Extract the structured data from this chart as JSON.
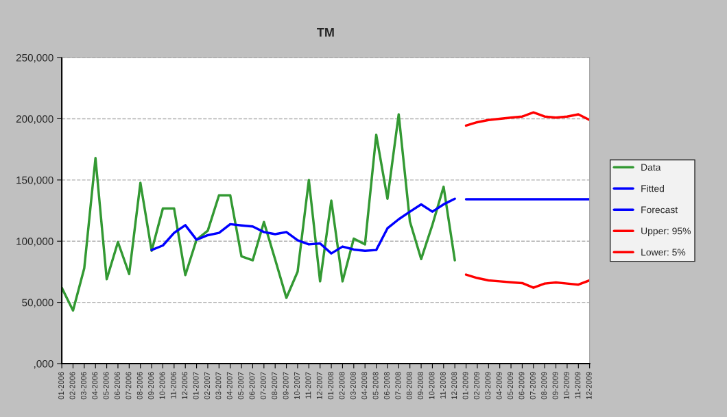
{
  "chart_data": {
    "type": "line",
    "title": "TM",
    "categories": [
      "01-2006",
      "02-2006",
      "03-2006",
      "04-2006",
      "05-2006",
      "06-2006",
      "07-2006",
      "08-2006",
      "09-2006",
      "10-2006",
      "11-2006",
      "12-2006",
      "01-2007",
      "02-2007",
      "03-2007",
      "04-2007",
      "05-2007",
      "06-2007",
      "07-2007",
      "08-2007",
      "09-2007",
      "10-2007",
      "11-2007",
      "12-2007",
      "01-2008",
      "02-2008",
      "03-2008",
      "04-2008",
      "05-2008",
      "06-2008",
      "07-2008",
      "08-2008",
      "09-2008",
      "10-2008",
      "11-2008",
      "12-2008",
      "01-2009",
      "02-2009",
      "03-2009",
      "04-2009",
      "05-2009",
      "06-2009",
      "07-2009",
      "08-2009",
      "09-2009",
      "10-2009",
      "11-2009",
      "12-2009"
    ],
    "series": [
      {
        "name": "Data",
        "color": "#339933",
        "values": [
          62000,
          43400,
          77900,
          167900,
          68900,
          99300,
          73200,
          147700,
          92200,
          126700,
          126700,
          72300,
          101200,
          108600,
          137500,
          137500,
          87600,
          84400,
          115700,
          85000,
          53700,
          75100,
          150000,
          67200,
          133200,
          67200,
          102100,
          97400,
          186900,
          134700,
          203600,
          116100,
          85400,
          113300,
          144400,
          84400,
          null,
          null,
          null,
          null,
          null,
          null,
          null,
          null,
          null,
          null,
          null,
          null
        ]
      },
      {
        "name": "Fitted",
        "color": "#0000ff",
        "values": [
          null,
          null,
          null,
          null,
          null,
          null,
          null,
          null,
          92800,
          96500,
          106800,
          113100,
          101200,
          104900,
          106800,
          113900,
          112900,
          112000,
          107500,
          105700,
          107500,
          100800,
          97400,
          98200,
          90000,
          95600,
          93200,
          92200,
          92800,
          110500,
          117900,
          124100,
          130100,
          124100,
          130100,
          134700,
          null,
          null,
          null,
          null,
          null,
          null,
          null,
          null,
          null,
          null,
          null,
          null
        ]
      },
      {
        "name": "Forecast",
        "color": "#0000ff",
        "values": [
          null,
          null,
          null,
          null,
          null,
          null,
          null,
          null,
          null,
          null,
          null,
          null,
          null,
          null,
          null,
          null,
          null,
          null,
          null,
          null,
          null,
          null,
          null,
          null,
          null,
          null,
          null,
          null,
          null,
          null,
          null,
          null,
          null,
          null,
          null,
          null,
          134200,
          134200,
          134200,
          134200,
          134200,
          134200,
          134200,
          134200,
          134200,
          134200,
          134200,
          134200
        ]
      },
      {
        "name": "Upper: 95%",
        "color": "#ff0000",
        "values": [
          null,
          null,
          null,
          null,
          null,
          null,
          null,
          null,
          null,
          null,
          null,
          null,
          null,
          null,
          null,
          null,
          null,
          null,
          null,
          null,
          null,
          null,
          null,
          null,
          null,
          null,
          null,
          null,
          null,
          null,
          null,
          null,
          null,
          null,
          null,
          null,
          194400,
          197200,
          199000,
          200000,
          200900,
          201800,
          205200,
          201800,
          200900,
          201800,
          203600,
          199000
        ]
      },
      {
        "name": "Lower: 5%",
        "color": "#ff0000",
        "values": [
          null,
          null,
          null,
          null,
          null,
          null,
          null,
          null,
          null,
          null,
          null,
          null,
          null,
          null,
          null,
          null,
          null,
          null,
          null,
          null,
          null,
          null,
          null,
          null,
          null,
          null,
          null,
          null,
          null,
          null,
          null,
          null,
          null,
          null,
          null,
          null,
          72700,
          69900,
          68000,
          67200,
          66500,
          65800,
          62000,
          65400,
          66300,
          65400,
          64500,
          68000
        ]
      }
    ],
    "ylim": [
      0,
      250000
    ],
    "yticks": [
      {
        "value": 0,
        "label": ",000"
      },
      {
        "value": 50000,
        "label": "50,000"
      },
      {
        "value": 100000,
        "label": "100,000"
      },
      {
        "value": 150000,
        "label": "150,000"
      },
      {
        "value": 200000,
        "label": "200,000"
      },
      {
        "value": 250000,
        "label": "250,000"
      }
    ],
    "grid": "y",
    "legend": "right",
    "line_style": "solid",
    "marker": "none"
  }
}
